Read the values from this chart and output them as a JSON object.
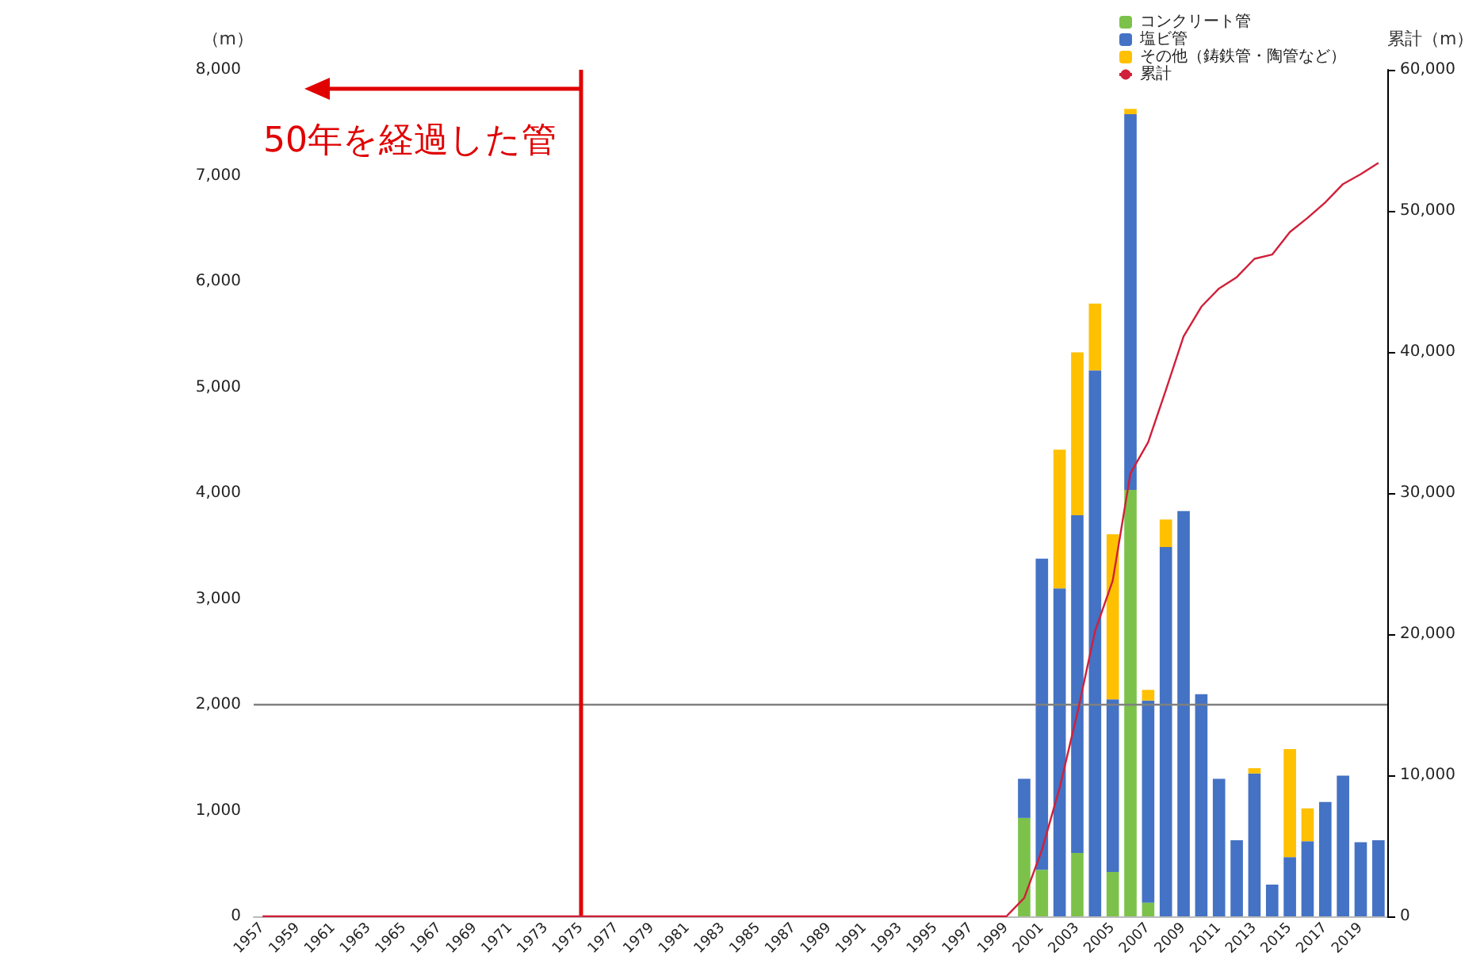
{
  "chart_data": {
    "type": "bar",
    "stacked": true,
    "ylabel": "（m）",
    "y2label": "累計（m）",
    "categories": [
      "1957",
      null,
      "1959",
      null,
      "1961",
      null,
      "1963",
      null,
      "1965",
      null,
      "1967",
      null,
      "1969",
      null,
      "1971",
      null,
      "1973",
      null,
      "1975",
      null,
      "1977",
      null,
      "1979",
      null,
      "1981",
      null,
      "1983",
      null,
      "1985",
      null,
      "1987",
      null,
      "1989",
      null,
      "1991",
      null,
      "1993",
      null,
      "1995",
      null,
      "1997",
      null,
      "1999",
      null,
      "2001",
      null,
      "2003",
      null,
      "2005",
      null,
      "2007",
      null,
      "2009",
      null,
      "2011",
      null,
      "2013",
      null,
      "2015",
      null,
      "2017",
      null,
      "2019",
      null
    ],
    "series": [
      {
        "name": "コンクリート管",
        "color": "#7cc24a",
        "values": [
          null,
          null,
          null,
          null,
          null,
          null,
          null,
          null,
          null,
          null,
          null,
          null,
          null,
          null,
          null,
          null,
          null,
          null,
          null,
          null,
          null,
          null,
          null,
          null,
          null,
          null,
          null,
          null,
          null,
          null,
          null,
          null,
          null,
          null,
          null,
          null,
          null,
          null,
          null,
          null,
          null,
          null,
          null,
          930,
          440,
          null,
          600,
          null,
          420,
          4030,
          130,
          null,
          null,
          null,
          null,
          null,
          null,
          null,
          null,
          null,
          null,
          null,
          null,
          null
        ]
      },
      {
        "name": "塩ビ管",
        "color": "#4472c4",
        "values": [
          null,
          null,
          null,
          null,
          null,
          null,
          null,
          null,
          null,
          null,
          null,
          null,
          null,
          null,
          null,
          null,
          null,
          null,
          null,
          null,
          null,
          null,
          null,
          null,
          null,
          null,
          null,
          null,
          null,
          null,
          null,
          null,
          null,
          null,
          null,
          null,
          null,
          null,
          null,
          null,
          null,
          null,
          null,
          370,
          2940,
          3100,
          3190,
          5160,
          1630,
          3550,
          1910,
          3490,
          3830,
          2100,
          1300,
          720,
          1350,
          300,
          560,
          710,
          1080,
          1330,
          700,
          720
        ]
      },
      {
        "name": "その他（鋳鉄管・陶管など）",
        "color": "#ffc000",
        "values": [
          null,
          null,
          null,
          null,
          null,
          null,
          null,
          null,
          null,
          null,
          null,
          null,
          null,
          null,
          null,
          null,
          null,
          null,
          null,
          null,
          null,
          null,
          null,
          null,
          null,
          null,
          null,
          null,
          null,
          null,
          null,
          null,
          null,
          null,
          null,
          null,
          null,
          null,
          null,
          null,
          null,
          null,
          null,
          null,
          null,
          1310,
          1540,
          630,
          1560,
          50,
          100,
          260,
          null,
          null,
          null,
          null,
          50,
          null,
          1020,
          310,
          null,
          null,
          null,
          null
        ]
      },
      {
        "name": "累計",
        "type": "line",
        "axis": "y2",
        "color": "#d0203a",
        "values": [
          0,
          0,
          0,
          0,
          0,
          0,
          0,
          0,
          0,
          0,
          0,
          0,
          0,
          0,
          0,
          0,
          0,
          0,
          0,
          0,
          0,
          0,
          0,
          0,
          0,
          0,
          0,
          0,
          0,
          0,
          0,
          0,
          0,
          0,
          0,
          0,
          0,
          0,
          0,
          0,
          0,
          0,
          0,
          1300,
          4700,
          9100,
          14400,
          20200,
          23800,
          31400,
          33600,
          37300,
          41100,
          43200,
          44500,
          45300,
          46600,
          46900,
          48500,
          49500,
          50600,
          51900,
          52600,
          53400
        ]
      }
    ],
    "ylim": [
      0,
      8000
    ],
    "yticks": [
      0,
      {
        "value": 1000,
        "label": "1,000"
      },
      {
        "value": 2000,
        "label": "2,000"
      },
      {
        "value": 3000,
        "label": "3,000"
      },
      {
        "value": 4000,
        "label": "4,000"
      },
      {
        "value": 5000,
        "label": "5,000"
      },
      {
        "value": 6000,
        "label": "6,000"
      },
      {
        "value": 7000,
        "label": "7,000"
      },
      {
        "value": 8000,
        "label": "8,000"
      }
    ],
    "y2lim": [
      0,
      60000
    ],
    "y2ticks": [
      0,
      {
        "value": 10000,
        "label": "10,000"
      },
      {
        "value": 20000,
        "label": "20,000"
      },
      {
        "value": 30000,
        "label": "30,000"
      },
      {
        "value": 40000,
        "label": "40,000"
      },
      {
        "value": 50000,
        "label": "50,000"
      },
      {
        "value": 60000,
        "label": "60,000"
      }
    ],
    "ref_lines": [
      {
        "axis": "y",
        "value": 2000,
        "color": "#808080"
      },
      {
        "axis": "x",
        "value": "1975",
        "label": "50年を経過した管",
        "color": "#e00000"
      }
    ],
    "grid": false,
    "legend": "top right",
    "marker": "none",
    "line_style": "solid"
  }
}
